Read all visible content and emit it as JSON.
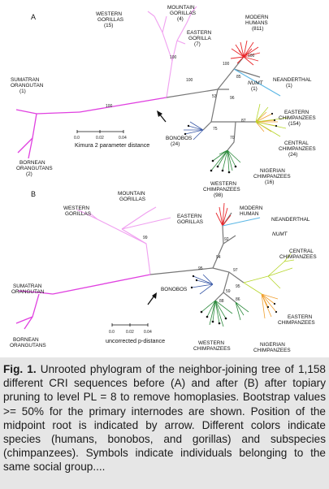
{
  "panelA": {
    "panel_label": "A",
    "taxa": {
      "western_gorillas": [
        "WESTERN",
        "GORILLAS",
        "(15)"
      ],
      "mountain_gorillas": [
        "MOUNTAIN",
        "GORILLAS",
        "(4)"
      ],
      "eastern_gorillas": [
        "EASTERN",
        "GORILLA",
        "(7)"
      ],
      "modern_humans": [
        "MODERN",
        "HUMANS",
        "(811)"
      ],
      "neanderthal": [
        "NEANDERTHAL",
        "(1)"
      ],
      "numt": [
        "NUMT",
        "(1)"
      ],
      "sumatran": [
        "SUMATRAN",
        "ORANGUTAN",
        "(1)"
      ],
      "bornean": [
        "BORNEAN",
        "ORANGUTANS",
        "(2)"
      ],
      "eastern_chimps": [
        "EASTERN",
        "CHIMPANZEES",
        "(154)"
      ],
      "central_chimps": [
        "CENTRAL",
        "CHIMPANZEES",
        "(24)"
      ],
      "bonobos": [
        "BONOBOS",
        "(24)"
      ],
      "nigerian_chimps": [
        "NIGERIAN",
        "CHIMPANZEES",
        "(16)"
      ],
      "western_chimps": [
        "WESTERN",
        "CHIMPANZEES",
        "(98)"
      ]
    },
    "bootstrap": [
      "100",
      "100",
      "100",
      "53",
      "96",
      "85",
      "100",
      "100",
      "75",
      "87",
      "70"
    ],
    "scale": {
      "ticks": [
        "0.0",
        "0.02",
        "0.04"
      ],
      "label": "Kimura 2 parameter distance"
    }
  },
  "panelB": {
    "panel_label": "B",
    "taxa": {
      "mountain_gorillas": [
        "MOUNTAIN",
        "GORILLAS"
      ],
      "western_gorillas": [
        "WESTERN",
        "GORILLAS"
      ],
      "eastern_gorillas": [
        "EASTERN",
        "GORILLAS"
      ],
      "modern_human": [
        "MODERN",
        "HUMAN"
      ],
      "neanderthal": [
        "NEANDERTHAL"
      ],
      "numt": [
        "NUMT"
      ],
      "sumatran": [
        "SUMATRAN",
        "ORANGUTAN"
      ],
      "bornean": [
        "BORNEAN",
        "ORANGUTANS"
      ],
      "central_chimps": [
        "CENTRAL",
        "CHIMPANZEES"
      ],
      "eastern_chimps": [
        "EASTERN",
        "CHIMPANZEES"
      ],
      "bonobos": [
        "BONOBOS"
      ],
      "western_chimps": [
        "WESTERN",
        "CHIMPANZEES"
      ],
      "nigerian_chimps": [
        "NIGERIAN",
        "CHIMPANZEES"
      ]
    },
    "bootstrap": [
      "99",
      "92",
      "94",
      "97",
      "95",
      "95",
      "59",
      "86",
      "88"
    ],
    "scale": {
      "ticks": [
        "0.0",
        "0.02",
        "0.04"
      ],
      "label": "uncorrected p-distance"
    }
  },
  "colors": {
    "orangutan": "#e040e0",
    "gorilla": "#f0a0f0",
    "human": "#e8262a",
    "neanderthal": "#5bb7e5",
    "chimp_eastern": "#f0a030",
    "chimp_central": "#b6d62a",
    "chimp_western": "#2e8b3e",
    "bonobo": "#3b5aa8",
    "trunk": "#777777",
    "caption_bg": "#e6e6e6"
  },
  "caption": {
    "fig_label": "Fig. 1.",
    "text": " Unrooted phylogram of the neighbor-joining tree of 1,158 different CRI sequences before (A) and after (B) after topiary pruning to level PL = 8 to remove homoplasies. Bootstrap values >= 50% for the primary internodes are shown. Position of the midpoint root is indicated by arrow. Different colors indicate species (humans, bonobos, and gorillas) and subspecies (chimpanzees). Symbols indicate individuals belonging to the same social group...."
  }
}
